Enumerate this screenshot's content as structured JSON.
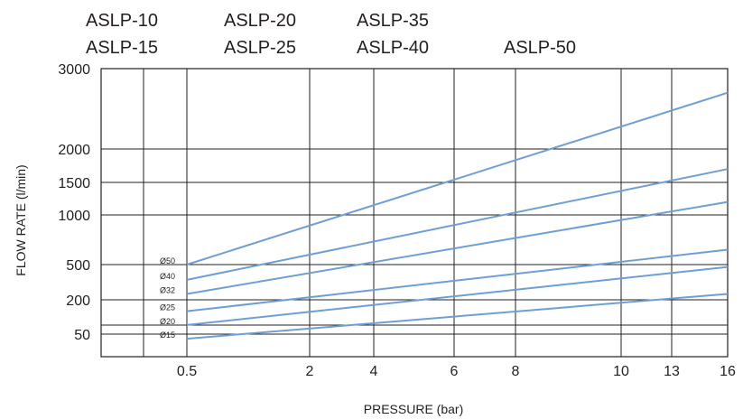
{
  "models": {
    "col1": [
      "ASLP-10",
      "ASLP-15"
    ],
    "col2": [
      "ASLP-20",
      "ASLP-25"
    ],
    "col3": [
      "ASLP-35",
      "ASLP-40"
    ],
    "col4": [
      "ASLP-50"
    ]
  },
  "chart_data": {
    "type": "line",
    "title": "",
    "xlabel": "PRESSURE (bar)",
    "ylabel": "FLOW RATE  (l/min)",
    "x_ticks": [
      "0.5",
      "2",
      "4",
      "6",
      "8",
      "10",
      "13",
      "16"
    ],
    "y_ticks": [
      "3000",
      "2000",
      "1500",
      "1000",
      "500",
      "200",
      "50"
    ],
    "grid": true,
    "line_color": "#6d9fd6",
    "grid_color": "#231f20",
    "series": [
      {
        "name": "Ø50",
        "x": [
          "0.5",
          "16"
        ],
        "y": [
          500,
          2700
        ]
      },
      {
        "name": "Ø40",
        "x": [
          "0.5",
          "16"
        ],
        "y": [
          370,
          1700
        ]
      },
      {
        "name": "Ø32",
        "x": [
          "0.5",
          "16"
        ],
        "y": [
          250,
          1200
        ]
      },
      {
        "name": "Ø25",
        "x": [
          "0.5",
          "16"
        ],
        "y": [
          150,
          650
        ]
      },
      {
        "name": "Ø20",
        "x": [
          "0.5",
          "16"
        ],
        "y": [
          90,
          480
        ]
      },
      {
        "name": "Ø15",
        "x": [
          "0.5",
          "16"
        ],
        "y": [
          30,
          250
        ]
      }
    ]
  }
}
